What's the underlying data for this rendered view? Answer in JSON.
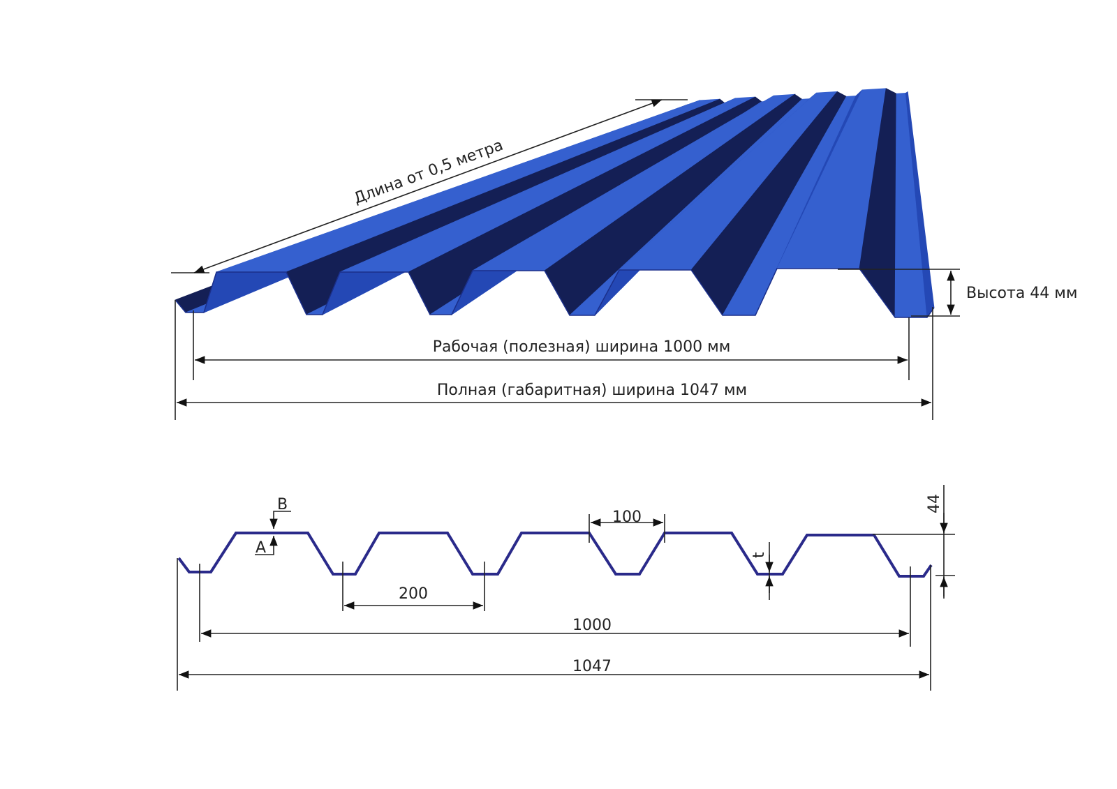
{
  "top_view": {
    "length_label": "Длина от 0,5 метра",
    "height_label": "Высота 44 мм",
    "working_width_label": "Рабочая (полезная) ширина 1000 мм",
    "full_width_label": "Полная (габаритная) ширина 1047 мм",
    "sheet_color": "#2f55c8"
  },
  "profile": {
    "label_B": "B",
    "label_A": "A",
    "label_t": "t",
    "rib_top_width": "100",
    "pitch": "200",
    "working_width": "1000",
    "full_width": "1047",
    "height": "44",
    "profile_color": "#2a2a8a"
  }
}
